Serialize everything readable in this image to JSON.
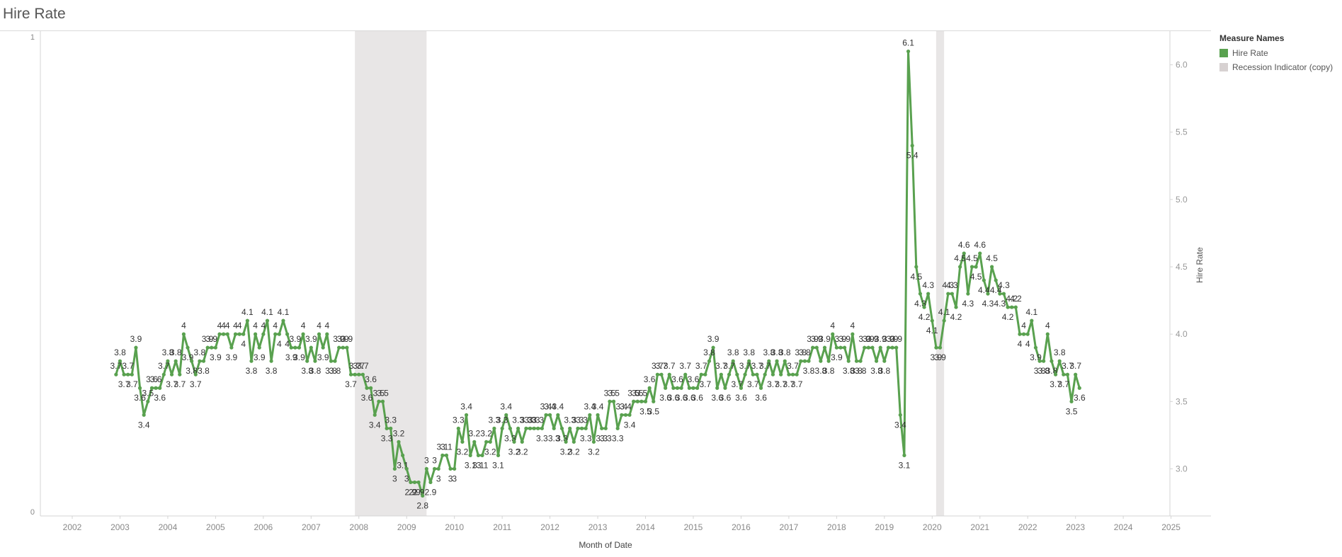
{
  "title": "Hire Rate",
  "legend": {
    "title": "Measure Names",
    "items": [
      {
        "label": "Hire Rate",
        "color": "#59a14f"
      },
      {
        "label": "Recession Indicator (copy)",
        "color": "#d7d1d1"
      }
    ]
  },
  "chart_data": {
    "type": "line",
    "title": "Hire Rate",
    "xlabel": "Month of Date",
    "ylabel_right": "Hire Rate",
    "x_ticks": [
      "2002",
      "2003",
      "2004",
      "2005",
      "2006",
      "2007",
      "2008",
      "2009",
      "2010",
      "2011",
      "2012",
      "2013",
      "2014",
      "2015",
      "2016",
      "2017",
      "2018",
      "2019",
      "2020",
      "2021",
      "2022",
      "2023",
      "2024",
      "2025"
    ],
    "y_ticks_right": [
      "3.0",
      "3.5",
      "4.0",
      "4.5",
      "5.0",
      "5.5",
      "6.0"
    ],
    "y_ticks_left": [
      "0",
      "1"
    ],
    "ylim_right": [
      2.65,
      6.25
    ],
    "ylim_left": [
      0,
      1
    ],
    "start": "2002-12",
    "end": "2024-03",
    "line_color": "#59a14f",
    "recession_color": "#e8e6e6",
    "recessions": [
      [
        "2007-12",
        "2009-06"
      ],
      [
        "2020-02",
        "2020-04"
      ]
    ],
    "series": [
      {
        "name": "Hire Rate",
        "values": [
          3.7,
          3.8,
          3.7,
          3.7,
          3.7,
          3.9,
          3.6,
          3.4,
          3.5,
          3.6,
          3.6,
          3.6,
          3.7,
          3.8,
          3.7,
          3.8,
          3.7,
          4.0,
          3.9,
          3.8,
          3.7,
          3.8,
          3.8,
          3.9,
          3.9,
          3.9,
          4.0,
          4.0,
          4.0,
          3.9,
          4.0,
          4.0,
          4.0,
          4.1,
          3.8,
          4.0,
          3.9,
          4.0,
          4.1,
          3.8,
          4.0,
          4.0,
          4.1,
          4.0,
          3.9,
          3.9,
          3.9,
          4.0,
          3.8,
          3.9,
          3.8,
          4.0,
          3.9,
          4.0,
          3.8,
          3.8,
          3.9,
          3.9,
          3.9,
          3.7,
          3.7,
          3.7,
          3.7,
          3.6,
          3.6,
          3.4,
          3.5,
          3.5,
          3.3,
          3.3,
          3.0,
          3.2,
          3.1,
          3.0,
          2.9,
          2.9,
          2.9,
          2.8,
          3.0,
          2.9,
          3.0,
          3.0,
          3.1,
          3.1,
          3.0,
          3.0,
          3.3,
          3.2,
          3.4,
          3.1,
          3.2,
          3.1,
          3.1,
          3.2,
          3.2,
          3.3,
          3.1,
          3.3,
          3.4,
          3.3,
          3.2,
          3.3,
          3.2,
          3.3,
          3.3,
          3.3,
          3.3,
          3.3,
          3.4,
          3.4,
          3.3,
          3.4,
          3.3,
          3.2,
          3.3,
          3.2,
          3.3,
          3.3,
          3.3,
          3.4,
          3.2,
          3.4,
          3.3,
          3.3,
          3.5,
          3.5,
          3.3,
          3.4,
          3.4,
          3.4,
          3.5,
          3.5,
          3.5,
          3.5,
          3.6,
          3.5,
          3.7,
          3.7,
          3.6,
          3.7,
          3.6,
          3.6,
          3.6,
          3.7,
          3.6,
          3.6,
          3.6,
          3.7,
          3.7,
          3.8,
          3.9,
          3.6,
          3.7,
          3.6,
          3.7,
          3.8,
          3.7,
          3.6,
          3.7,
          3.8,
          3.7,
          3.7,
          3.6,
          3.7,
          3.8,
          3.7,
          3.8,
          3.7,
          3.8,
          3.7,
          3.7,
          3.7,
          3.8,
          3.8,
          3.8,
          3.9,
          3.9,
          3.8,
          3.9,
          3.8,
          4.0,
          3.9,
          3.9,
          3.9,
          3.8,
          4.0,
          3.8,
          3.8,
          3.9,
          3.9,
          3.9,
          3.8,
          3.9,
          3.8,
          3.9,
          3.9,
          3.9,
          3.4,
          3.1,
          6.1,
          5.4,
          4.5,
          4.3,
          4.2,
          4.3,
          4.1,
          3.9,
          3.9,
          4.1,
          4.3,
          4.3,
          4.2,
          4.5,
          4.6,
          4.3,
          4.5,
          4.5,
          4.6,
          4.4,
          4.3,
          4.5,
          4.4,
          4.3,
          4.3,
          4.2,
          4.2,
          4.2,
          4.0,
          4.0,
          4.0,
          4.1,
          3.9,
          3.8,
          3.8,
          4.0,
          3.8,
          3.7,
          3.8,
          3.7,
          3.7,
          3.5,
          3.7,
          3.6
        ]
      }
    ]
  }
}
